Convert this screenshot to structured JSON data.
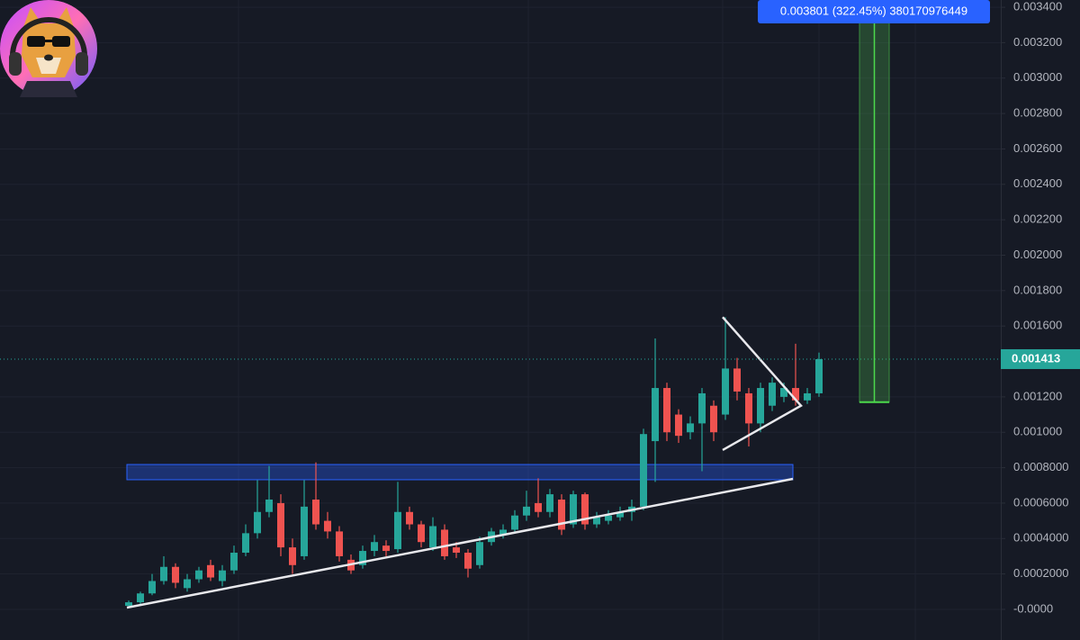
{
  "chart_data": {
    "type": "candlestick",
    "up_color": "#26a69a",
    "down_color": "#ef5350",
    "ylim": [
      -0.000173,
      0.003441
    ],
    "yticks": [
      {
        "value": 0.0034,
        "label": "0.003400"
      },
      {
        "value": 0.0032,
        "label": "0.003200"
      },
      {
        "value": 0.003,
        "label": "0.003000"
      },
      {
        "value": 0.0028,
        "label": "0.002800"
      },
      {
        "value": 0.0026,
        "label": "0.002600"
      },
      {
        "value": 0.0024,
        "label": "0.002400"
      },
      {
        "value": 0.0022,
        "label": "0.002200"
      },
      {
        "value": 0.002,
        "label": "0.002000"
      },
      {
        "value": 0.0018,
        "label": "0.001800"
      },
      {
        "value": 0.0016,
        "label": "0.001600"
      },
      {
        "value": 0.0012,
        "label": "0.001200"
      },
      {
        "value": 0.001,
        "label": "0.001000"
      },
      {
        "value": 0.0008,
        "label": "0.0008000"
      },
      {
        "value": 0.0006,
        "label": "0.0006000"
      },
      {
        "value": 0.0004,
        "label": "0.0004000"
      },
      {
        "value": 0.0002,
        "label": "0.0002000"
      },
      {
        "value": 0,
        "label": "-0.0000"
      }
    ],
    "grid": true,
    "open": [
      2e-05,
      4e-05,
      9e-05,
      0.00016,
      0.00024,
      0.00012,
      0.00017,
      0.00025,
      0.00016,
      0.00022,
      0.00032,
      0.00043,
      0.00055,
      0.0006,
      0.00035,
      0.0003,
      0.00062,
      0.0005,
      0.00044,
      0.00028,
      0.00025,
      0.00033,
      0.00036,
      0.00034,
      0.00055,
      0.00048,
      0.00035,
      0.00045,
      0.00035,
      0.00032,
      0.00025,
      0.00038,
      0.00042,
      0.00045,
      0.00053,
      0.0006,
      0.00055,
      0.00062,
      0.00048,
      0.00065,
      0.00048,
      0.0005,
      0.00052,
      0.00055,
      0.00058,
      0.00095,
      0.00125,
      0.0011,
      0.001,
      0.00105,
      0.00115,
      0.0011,
      0.00136,
      0.00122,
      0.00105,
      0.00115,
      0.0012,
      0.00125,
      0.00118,
      0.00122
    ],
    "high": [
      5e-05,
      0.0001,
      0.0002,
      0.0003,
      0.00026,
      0.0002,
      0.00024,
      0.00028,
      0.00025,
      0.00036,
      0.00048,
      0.00073,
      0.00081,
      0.00065,
      0.0004,
      0.00073,
      0.00083,
      0.00055,
      0.00047,
      0.00031,
      0.00036,
      0.00042,
      0.00039,
      0.00072,
      0.00058,
      0.0005,
      0.00052,
      0.00048,
      0.00038,
      0.00034,
      0.00041,
      0.00046,
      0.00048,
      0.00056,
      0.00067,
      0.00074,
      0.00068,
      0.00065,
      0.00067,
      0.00066,
      0.00055,
      0.00056,
      0.00058,
      0.00062,
      0.00102,
      0.00153,
      0.00128,
      0.00113,
      0.00109,
      0.00125,
      0.00118,
      0.00165,
      0.00142,
      0.00125,
      0.00128,
      0.00131,
      0.00128,
      0.0015,
      0.00125,
      0.00145
    ],
    "low": [
      1e-05,
      3e-05,
      8e-05,
      0.00014,
      0.00012,
      0.0001,
      0.00015,
      0.00016,
      0.00013,
      0.0002,
      0.0003,
      0.0004,
      0.00052,
      0.0003,
      0.0002,
      0.00028,
      0.00045,
      0.0004,
      0.00027,
      0.0002,
      0.00023,
      0.0003,
      0.0003,
      0.00032,
      0.00045,
      0.00035,
      0.00033,
      0.00028,
      0.00029,
      0.00018,
      0.00023,
      0.00036,
      0.0004,
      0.00043,
      0.0005,
      0.00052,
      0.00052,
      0.00042,
      0.00046,
      0.00045,
      0.00046,
      0.00048,
      0.0005,
      0.0005,
      0.00056,
      0.00072,
      0.00095,
      0.00094,
      0.00096,
      0.00078,
      0.00095,
      0.00107,
      0.00118,
      0.00092,
      0.001,
      0.00112,
      0.00117,
      0.00115,
      0.00116,
      0.0012
    ],
    "close": [
      4e-05,
      9e-05,
      0.00016,
      0.00024,
      0.00015,
      0.00017,
      0.00022,
      0.00018,
      0.00022,
      0.00032,
      0.00043,
      0.00055,
      0.00062,
      0.00035,
      0.00025,
      0.00058,
      0.00048,
      0.00044,
      0.0003,
      0.00022,
      0.00033,
      0.00038,
      0.00033,
      0.00055,
      0.00048,
      0.00038,
      0.00047,
      0.0003,
      0.00032,
      0.00023,
      0.00038,
      0.00044,
      0.00045,
      0.00053,
      0.00058,
      0.00055,
      0.00065,
      0.00045,
      0.00065,
      0.00048,
      0.00052,
      0.00053,
      0.00055,
      0.00058,
      0.00099,
      0.00125,
      0.001,
      0.00098,
      0.00105,
      0.00122,
      0.001,
      0.00136,
      0.00123,
      0.00105,
      0.00125,
      0.00128,
      0.00125,
      0.00118,
      0.00122,
      0.001413
    ],
    "last_price": 0.001413,
    "zone": [
      0.000732,
      0.000818
    ],
    "trendline": [
      1e-05,
      0.000737
    ],
    "triangle": [
      0.00165,
      0.0009,
      0.00115
    ],
    "target": {
      "label": "0.003801 (322.45%) 380170976449",
      "entry": 0.00117,
      "value": 0.003801
    }
  }
}
